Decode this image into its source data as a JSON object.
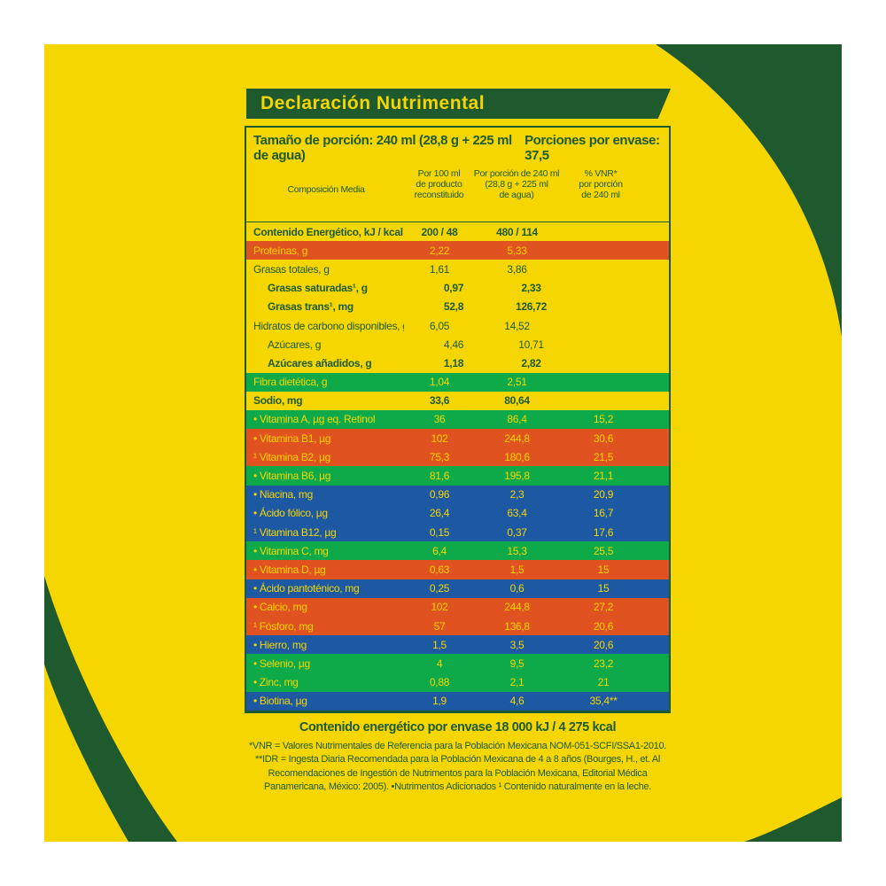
{
  "title": "Declaración Nutrimental",
  "serving": {
    "size": "Tamaño de porción: 240 ml (28,8 g + 225 ml de agua)",
    "per_package": "Porciones por envase: 37,5"
  },
  "columns": {
    "composition": "Composición Media",
    "per100": [
      "Por 100 ml",
      "de producto",
      "reconstituido"
    ],
    "perserving": [
      "Por porción de 240 ml",
      "(28,8 g + 225 ml",
      "de agua)"
    ],
    "vnr": [
      "% VNR*",
      "por porción",
      "de 240 ml"
    ]
  },
  "rows": [
    {
      "name": "Contenido Energético, kJ / kcal",
      "v1": "200 / 48",
      "v2": "480 / 114",
      "v3": "",
      "bg": "yellow",
      "bold": true,
      "indent": false
    },
    {
      "name": "Proteínas, g",
      "v1": "2,22",
      "v2": "5,33",
      "v3": "",
      "bg": "red",
      "bold": false,
      "indent": false
    },
    {
      "name": "Grasas totales, g",
      "v1": "1,61",
      "v2": "3,86",
      "v3": "",
      "bg": "yellow",
      "bold": false,
      "indent": false
    },
    {
      "name": "Grasas saturadas¹, g",
      "v1": "0,97",
      "v2": "2,33",
      "v3": "",
      "bg": "yellow",
      "bold": true,
      "indent": true
    },
    {
      "name": "Grasas trans¹, mg",
      "v1": "52,8",
      "v2": "126,72",
      "v3": "",
      "bg": "yellow",
      "bold": true,
      "indent": true
    },
    {
      "name": "Hidratos de carbono disponibles, g",
      "v1": "6,05",
      "v2": "14,52",
      "v3": "",
      "bg": "yellow",
      "bold": false,
      "indent": false
    },
    {
      "name": "Azúcares, g",
      "v1": "4,46",
      "v2": "10,71",
      "v3": "",
      "bg": "yellow",
      "bold": false,
      "indent": true
    },
    {
      "name": "Azúcares añadidos, g",
      "v1": "1,18",
      "v2": "2,82",
      "v3": "",
      "bg": "yellow",
      "bold": true,
      "indent": true
    },
    {
      "name": "Fibra dietética, g",
      "v1": "1,04",
      "v2": "2,51",
      "v3": "",
      "bg": "green",
      "bold": false,
      "indent": false
    },
    {
      "name": "Sodio, mg",
      "v1": "33,6",
      "v2": "80,64",
      "v3": "",
      "bg": "yellow",
      "bold": true,
      "indent": false
    },
    {
      "name": "• Vitamina A, µg eq. Retinol",
      "v1": "36",
      "v2": "86,4",
      "v3": "15,2",
      "bg": "green",
      "bold": false,
      "indent": false
    },
    {
      "name": "• Vitamina B1, µg",
      "v1": "102",
      "v2": "244,8",
      "v3": "30,6",
      "bg": "red",
      "bold": false,
      "indent": false
    },
    {
      "name": "¹ Vitamina B2, µg",
      "v1": "75,3",
      "v2": "180,6",
      "v3": "21,5",
      "bg": "red",
      "bold": false,
      "indent": false
    },
    {
      "name": "• Vitamina B6, µg",
      "v1": "81,6",
      "v2": "195,8",
      "v3": "21,1",
      "bg": "green",
      "bold": false,
      "indent": false
    },
    {
      "name": "• Niacina, mg",
      "v1": "0,96",
      "v2": "2,3",
      "v3": "20,9",
      "bg": "blue",
      "bold": false,
      "indent": false
    },
    {
      "name": "• Ácido fólico, µg",
      "v1": "26,4",
      "v2": "63,4",
      "v3": "16,7",
      "bg": "blue",
      "bold": false,
      "indent": false
    },
    {
      "name": "¹ Vitamina B12, µg",
      "v1": "0,15",
      "v2": "0,37",
      "v3": "17,6",
      "bg": "blue",
      "bold": false,
      "indent": false
    },
    {
      "name": "• Vitamina C, mg",
      "v1": "6,4",
      "v2": "15,3",
      "v3": "25,5",
      "bg": "green",
      "bold": false,
      "indent": false
    },
    {
      "name": "• Vitamina D, µg",
      "v1": "0,63",
      "v2": "1,5",
      "v3": "15",
      "bg": "red",
      "bold": false,
      "indent": false
    },
    {
      "name": "• Ácido pantoténico, mg",
      "v1": "0,25",
      "v2": "0,6",
      "v3": "15",
      "bg": "blue",
      "bold": false,
      "indent": false
    },
    {
      "name": "• Calcio, mg",
      "v1": "102",
      "v2": "244,8",
      "v3": "27,2",
      "bg": "red",
      "bold": false,
      "indent": false
    },
    {
      "name": "¹ Fósforo, mg",
      "v1": "57",
      "v2": "136,8",
      "v3": "20,6",
      "bg": "red",
      "bold": false,
      "indent": false
    },
    {
      "name": "• Hierro, mg",
      "v1": "1,5",
      "v2": "3,5",
      "v3": "20,6",
      "bg": "blue",
      "bold": false,
      "indent": false
    },
    {
      "name": "• Selenio, µg",
      "v1": "4",
      "v2": "9,5",
      "v3": "23,2",
      "bg": "green",
      "bold": false,
      "indent": false
    },
    {
      "name": "• Zinc, mg",
      "v1": "0,88",
      "v2": "2,1",
      "v3": "21",
      "bg": "green",
      "bold": false,
      "indent": false
    },
    {
      "name": "• Biotina, µg",
      "v1": "1,9",
      "v2": "4,6",
      "v3": "35,4**",
      "bg": "blue",
      "bold": false,
      "indent": false
    }
  ],
  "energy_per_package": "Contenido energético por envase 18 000 kJ / 4 275 kcal",
  "notes": [
    "*VNR = Valores Nutrimentales de Referencia para la Población Mexicana NOM-051-SCFI/SSA1-2010.",
    "**IDR = Ingesta Diaria Recomendada para la Población Mexicana de 4 a 8 años (Bourges, H., et. Al",
    "Recomendaciones de Ingestión de Nutrimentos para la Población Mexicana, Editorial Médica",
    "Panamericana, México: 2005). •Nutrimentos Adicionados ¹ Contenido naturalmente en la leche."
  ],
  "colors": {
    "yellow": "#f6d600",
    "dark_green": "#1e5a2e",
    "red": "#e0521f",
    "green": "#0eaa4a",
    "blue": "#1d59a3"
  }
}
